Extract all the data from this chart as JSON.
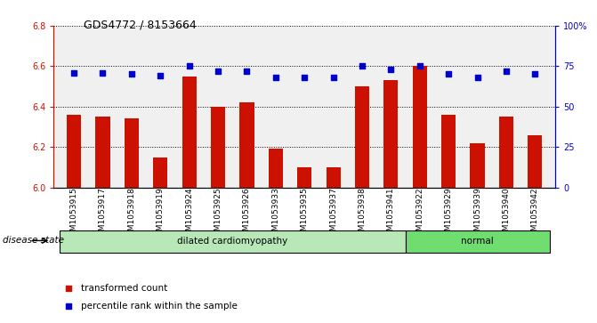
{
  "title": "GDS4772 / 8153664",
  "samples": [
    "GSM1053915",
    "GSM1053917",
    "GSM1053918",
    "GSM1053919",
    "GSM1053924",
    "GSM1053925",
    "GSM1053926",
    "GSM1053933",
    "GSM1053935",
    "GSM1053937",
    "GSM1053938",
    "GSM1053941",
    "GSM1053922",
    "GSM1053929",
    "GSM1053939",
    "GSM1053940",
    "GSM1053942"
  ],
  "transformed_count": [
    6.36,
    6.35,
    6.34,
    6.15,
    6.55,
    6.4,
    6.42,
    6.19,
    6.1,
    6.1,
    6.5,
    6.53,
    6.6,
    6.36,
    6.22,
    6.35,
    6.26
  ],
  "percentile_rank": [
    71,
    71,
    70,
    69,
    75,
    72,
    72,
    68,
    68,
    68,
    75,
    73,
    75,
    70,
    68,
    72,
    70
  ],
  "disease_groups": [
    {
      "label": "dilated cardiomyopathy",
      "start": 0,
      "end": 11,
      "color": "#b8e8b8"
    },
    {
      "label": "normal",
      "start": 12,
      "end": 16,
      "color": "#70dd70"
    }
  ],
  "ylim_left": [
    6.0,
    6.8
  ],
  "ylim_right": [
    0,
    100
  ],
  "yticks_left": [
    6.0,
    6.2,
    6.4,
    6.6,
    6.8
  ],
  "yticks_right": [
    0,
    25,
    50,
    75,
    100
  ],
  "bar_color": "#cc1100",
  "dot_color": "#0000cc",
  "bar_width": 0.5,
  "legend_items": [
    {
      "label": "transformed count",
      "color": "#cc1100"
    },
    {
      "label": "percentile rank within the sample",
      "color": "#0000cc"
    }
  ],
  "disease_state_label": "disease state",
  "left_axis_color": "#cc1100",
  "right_axis_color": "#0000cc",
  "plot_bg_color": "#f0f0f0"
}
